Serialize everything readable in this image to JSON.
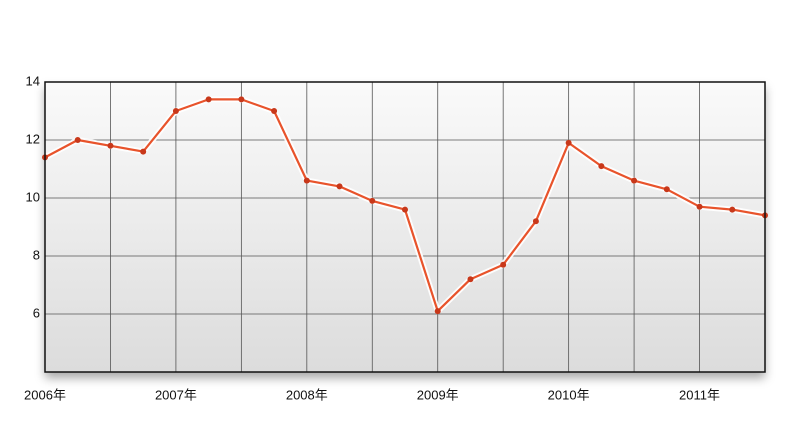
{
  "chart_data": {
    "type": "line",
    "x": [
      2006,
      2006.25,
      2006.5,
      2006.75,
      2007,
      2007.25,
      2007.5,
      2007.75,
      2008,
      2008.25,
      2008.5,
      2008.75,
      2009,
      2009.25,
      2009.5,
      2009.75,
      2010,
      2010.25,
      2010.5,
      2010.75,
      2011,
      2011.25,
      2011.5
    ],
    "series": [
      {
        "color": "#e8532b",
        "values": [
          11.4,
          12.0,
          11.8,
          11.6,
          13.0,
          13.4,
          13.4,
          13.0,
          10.6,
          10.4,
          9.9,
          9.6,
          6.1,
          7.2,
          7.7,
          9.2,
          11.9,
          11.1,
          10.6,
          10.3,
          9.7,
          9.6,
          9.4
        ]
      }
    ],
    "xlim": [
      2006,
      2011.5
    ],
    "xticks": [
      {
        "value": 2006,
        "label": "2006年"
      },
      {
        "value": 2006.5,
        "label": null
      },
      {
        "value": 2007,
        "label": "2007年"
      },
      {
        "value": 2007.5,
        "label": null
      },
      {
        "value": 2008,
        "label": "2008年"
      },
      {
        "value": 2008.5,
        "label": null
      },
      {
        "value": 2009,
        "label": "2009年"
      },
      {
        "value": 2009.5,
        "label": null
      },
      {
        "value": 2010,
        "label": "2010年"
      },
      {
        "value": 2010.5,
        "label": null
      },
      {
        "value": 2011,
        "label": "2011年"
      },
      {
        "value": 2011.5,
        "label": null
      }
    ],
    "ylim": [
      4,
      14
    ],
    "yticks": [
      6,
      8,
      10,
      12,
      14
    ],
    "grid": true
  }
}
